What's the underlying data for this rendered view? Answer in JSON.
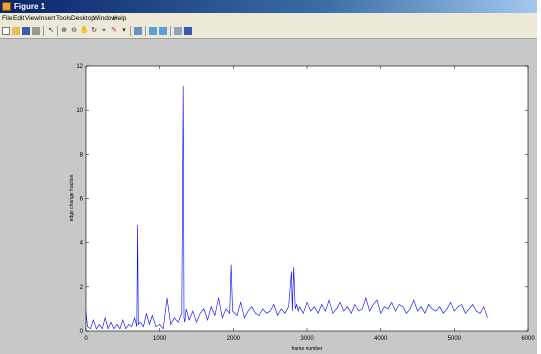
{
  "window": {
    "title": "Figure 1"
  },
  "menu": [
    "File",
    "Edit",
    "View",
    "Insert",
    "Tools",
    "Desktop",
    "Window",
    "Help"
  ],
  "toolbar": [
    "new-figure-icon",
    "open-file-icon",
    "save-icon",
    "print-icon",
    "pointer-icon",
    "zoom-in-icon",
    "zoom-out-icon",
    "pan-icon",
    "rotate-icon",
    "data-cursor-icon",
    "brush-icon",
    "link-icon",
    "colorbar-icon",
    "legend-icon",
    "hide-plot-tools-icon",
    "show-plot-tools-icon"
  ],
  "colors": {
    "line": "#0000ff",
    "axes_bg": "#ffffff",
    "figure_bg": "#c8c8c8"
  },
  "chart_data": {
    "type": "line",
    "xlabel": "frame number",
    "ylabel": "edge change fraction",
    "xlim": [
      0,
      6000
    ],
    "ylim": [
      0,
      12
    ],
    "xticks": [
      "0",
      "1000",
      "2000",
      "3000",
      "4000",
      "5000",
      "6000"
    ],
    "yticks": [
      "0",
      "2",
      "4",
      "6",
      "8",
      "10",
      "12"
    ],
    "grid": false,
    "series": [
      {
        "x": [
          0,
          20,
          60,
          100,
          140,
          180,
          220,
          260,
          300,
          340,
          380,
          420,
          460,
          500,
          540,
          580,
          620,
          660,
          690,
          700,
          710,
          740,
          780,
          820,
          860,
          900,
          950,
          1000,
          1050,
          1100,
          1150,
          1200,
          1250,
          1300,
          1320,
          1330,
          1340,
          1360,
          1400,
          1450,
          1500,
          1550,
          1600,
          1650,
          1700,
          1750,
          1800,
          1850,
          1900,
          1950,
          1970,
          1990,
          2050,
          2100,
          2150,
          2200,
          2250,
          2300,
          2350,
          2400,
          2450,
          2500,
          2550,
          2600,
          2650,
          2700,
          2750,
          2790,
          2800,
          2820,
          2840,
          2860,
          2880,
          2900,
          2950,
          3000,
          3050,
          3100,
          3150,
          3200,
          3250,
          3300,
          3350,
          3400,
          3450,
          3500,
          3550,
          3600,
          3650,
          3700,
          3750,
          3800,
          3850,
          3900,
          3950,
          4000,
          4050,
          4100,
          4150,
          4200,
          4250,
          4300,
          4350,
          4400,
          4450,
          4500,
          4550,
          4600,
          4650,
          4700,
          4750,
          4800,
          4850,
          4900,
          4950,
          5000,
          5050,
          5100,
          5150,
          5200,
          5250,
          5300,
          5350,
          5400,
          5450
        ],
        "y": [
          0.9,
          0.2,
          0.1,
          0.5,
          0.1,
          0.3,
          0.1,
          0.6,
          0.1,
          0.4,
          0.1,
          0.3,
          0.1,
          0.5,
          0.1,
          0.3,
          0.2,
          0.6,
          0.2,
          4.8,
          0.3,
          0.4,
          0.2,
          0.8,
          0.3,
          0.7,
          0.2,
          0.3,
          0.1,
          1.5,
          0.3,
          0.6,
          0.4,
          0.8,
          11.1,
          0.6,
          0.4,
          1.0,
          0.5,
          0.9,
          0.4,
          0.8,
          1.0,
          0.5,
          1.1,
          0.7,
          1.5,
          0.6,
          1.0,
          0.8,
          3.0,
          0.9,
          0.7,
          1.3,
          0.6,
          0.9,
          1.1,
          0.8,
          0.7,
          1.0,
          0.8,
          0.9,
          1.2,
          0.7,
          1.0,
          0.8,
          1.1,
          2.7,
          0.9,
          2.9,
          1.0,
          1.2,
          0.9,
          1.1,
          0.8,
          1.3,
          0.9,
          1.1,
          0.8,
          1.2,
          0.9,
          1.4,
          0.8,
          1.0,
          1.3,
          0.9,
          1.1,
          0.8,
          1.2,
          0.9,
          1.0,
          1.5,
          0.9,
          1.2,
          1.4,
          0.8,
          1.1,
          1.0,
          1.3,
          0.9,
          1.2,
          1.1,
          0.8,
          1.0,
          1.4,
          0.9,
          1.1,
          0.8,
          1.2,
          1.0,
          0.9,
          1.1,
          0.8,
          1.0,
          1.3,
          0.9,
          1.1,
          1.2,
          0.8,
          1.0,
          1.2,
          0.9,
          0.8,
          1.1,
          0.6
        ]
      }
    ]
  }
}
